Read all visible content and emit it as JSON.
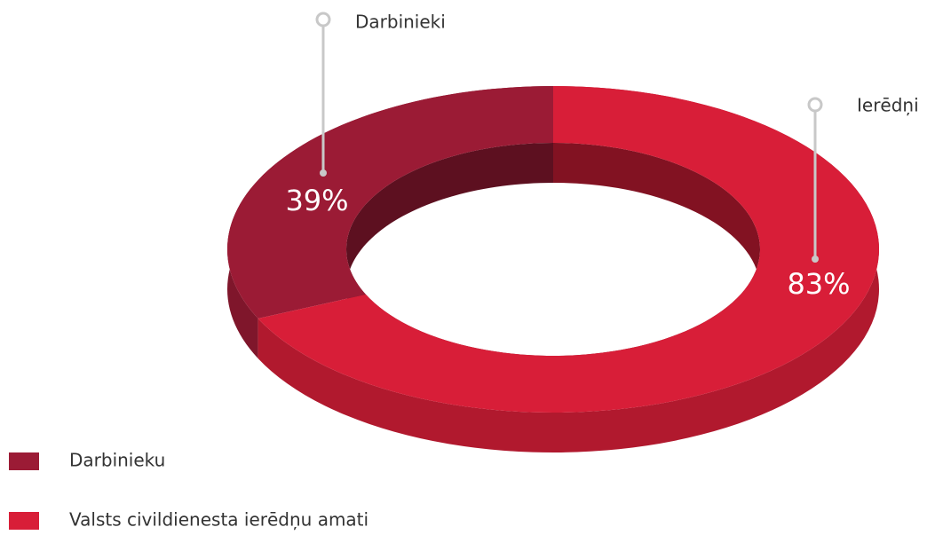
{
  "chart_data": {
    "type": "donut3d",
    "categories": [
      "Darbinieki",
      "Ierēdņi"
    ],
    "values": [
      39,
      83
    ],
    "value_labels": [
      "39%",
      "83%"
    ],
    "colors": [
      "#9b1b35",
      "#d81e38"
    ],
    "legend": [
      "Darbinieku",
      "Valsts civildienesta ierēdņu amati"
    ]
  }
}
